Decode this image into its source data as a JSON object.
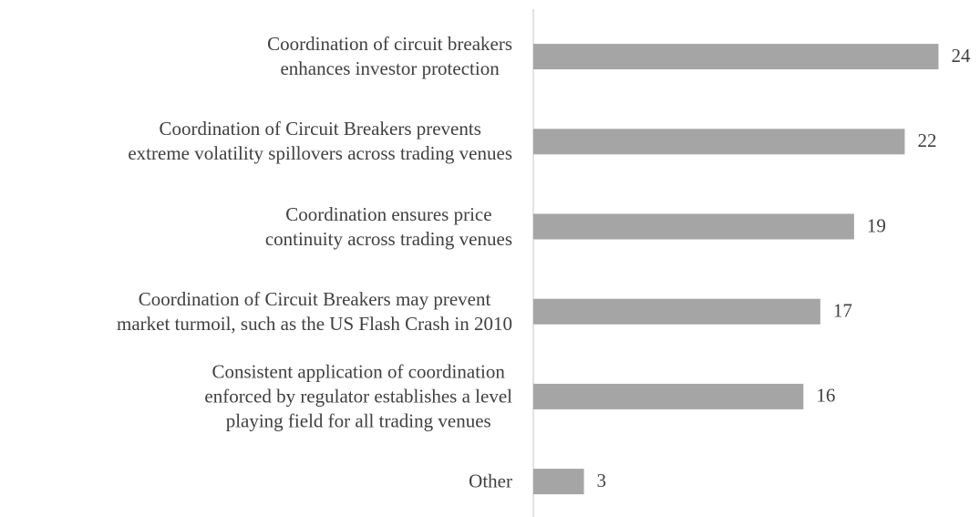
{
  "chart_data": {
    "type": "bar",
    "orientation": "horizontal",
    "categories": [
      "Coordination of circuit breakers\nenhances investor protection",
      "Coordination of Circuit Breakers prevents\nextreme volatility spillovers across trading venues",
      "Coordination ensures price\ncontinuity across trading venues",
      "Coordination of Circuit Breakers may prevent\nmarket turmoil, such as the US Flash Crash in 2010",
      "Consistent application of coordination\nenforced by regulator establishes a level\nplaying field for all trading venues",
      "Other"
    ],
    "values": [
      24,
      22,
      19,
      17,
      16,
      3
    ],
    "color": "#a5a5a5"
  }
}
